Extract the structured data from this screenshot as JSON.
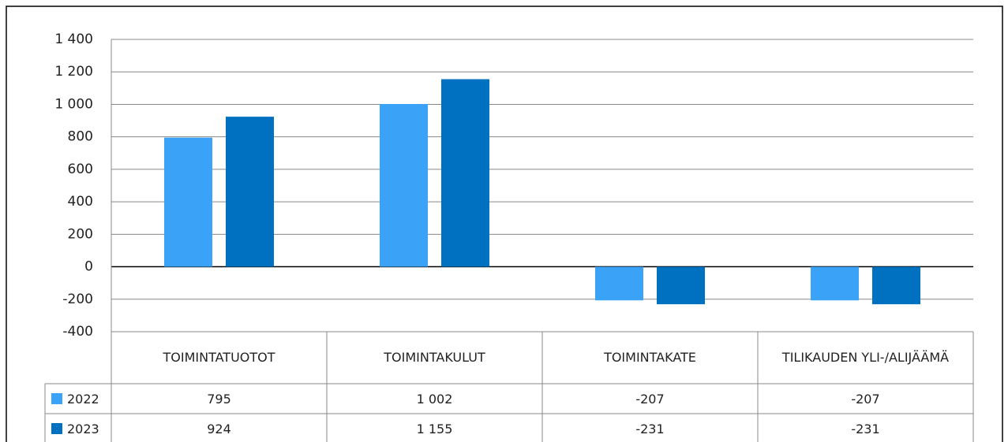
{
  "chart_data": {
    "type": "bar",
    "categories": [
      "TOIMINTATUOTOT",
      "TOIMINTAKULUT",
      "TOIMINTAKATE",
      "TILIKAUDEN YLI-/ALIJÄÄMÄ"
    ],
    "series": [
      {
        "name": "2022",
        "color": "#3aa3f7",
        "values": [
          795,
          1002,
          -207,
          -207
        ],
        "value_labels": [
          "795",
          "1 002",
          "-207",
          "-207"
        ]
      },
      {
        "name": "2023",
        "color": "#0070c0",
        "values": [
          924,
          1155,
          -231,
          -231
        ],
        "value_labels": [
          "924",
          "1 155",
          "-231",
          "-231"
        ]
      }
    ],
    "ylim": [
      -400,
      1400
    ],
    "yticks": [
      {
        "value": -400,
        "label": "-400"
      },
      {
        "value": -200,
        "label": "-200"
      },
      0,
      200,
      400,
      600,
      800,
      {
        "value": 1000,
        "label": "1 000"
      },
      {
        "value": 1200,
        "label": "1 200"
      },
      {
        "value": 1400,
        "label": "1 400"
      }
    ],
    "grid": true
  }
}
